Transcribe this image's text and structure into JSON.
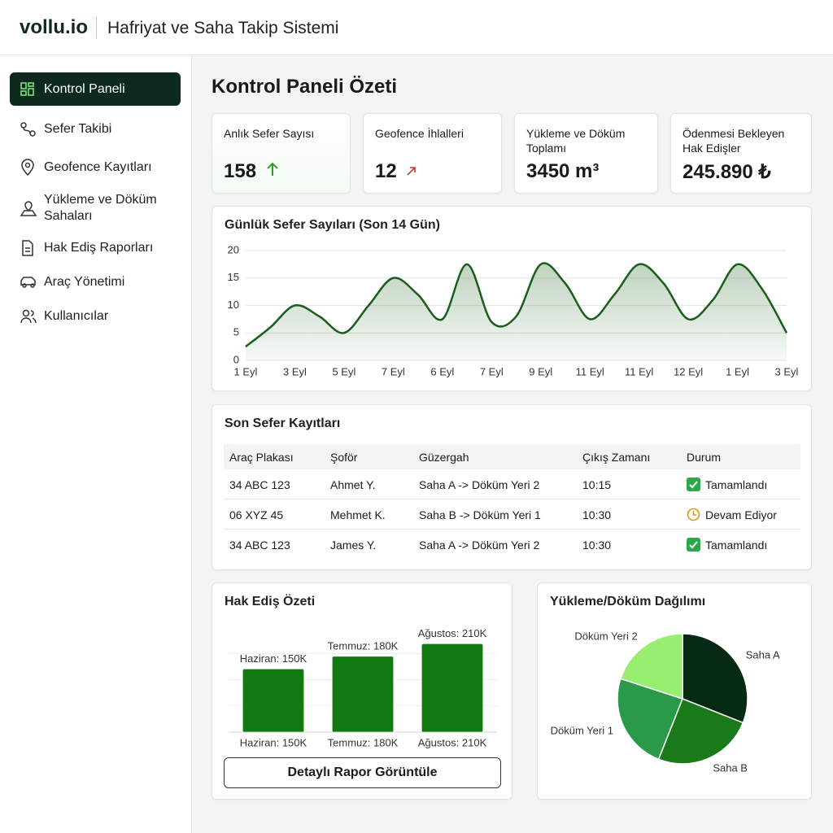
{
  "header": {
    "brand": "vollu.io",
    "title": "Hafriyat ve Saha Takip Sistemi"
  },
  "sidebar": {
    "items": [
      "Kontrol Paneli",
      "Sefer Takibi",
      "Geofence Kayıtları",
      "Yükleme ve Döküm Sahaları",
      "Hak Ediş Raporları",
      "Araç Yönetimi",
      "Kullanıcılar"
    ]
  },
  "page_title": "Kontrol Paneli Özeti",
  "kpis": [
    {
      "label": "Anlık Sefer Sayısı",
      "value": "158"
    },
    {
      "label": "Geofence İhlalleri",
      "value": "12"
    },
    {
      "label": "Yükleme ve Döküm Toplamı",
      "value": "3450 m³"
    },
    {
      "label": "Ödenmesi Bekleyen Hak Edişler",
      "value": "245.890 ₺"
    }
  ],
  "chart_data": [
    {
      "type": "line",
      "title": "Günlük Sefer Sayıları (Son 14 Gün)",
      "categories": [
        "1 Eyl",
        null,
        "3 Eyl",
        null,
        "5 Eyl",
        null,
        "7 Eyl",
        null,
        "6 Eyl",
        null,
        "7 Eyl",
        null,
        "9 Eyl",
        null,
        "11 Eyl",
        null,
        "11 Eyl",
        null,
        "12 Eyl",
        null,
        "1 Eyl",
        null,
        "3 Eyl"
      ],
      "values": [
        2.5,
        6,
        10,
        8,
        5,
        10,
        15,
        12,
        7.5,
        17.5,
        7,
        8,
        17.5,
        14,
        7.5,
        12,
        17.5,
        14,
        7.5,
        11,
        17.5,
        13,
        5
      ],
      "color": "#1b5e1b",
      "ylim": [
        0,
        20
      ],
      "yticks": [
        0,
        5,
        10,
        15,
        20
      ],
      "grid": true
    },
    {
      "type": "bar",
      "title": "Hak Ediş Özeti",
      "values": [
        150000,
        180000,
        210000
      ],
      "value_labels": [
        "Haziran: 150K",
        "Temmuz: 180K",
        "Ağustos: 210K"
      ],
      "color": "#107a10",
      "ylim": [
        0,
        250000
      ],
      "grid": true
    },
    {
      "type": "pie",
      "title": "Yükleme/Döküm Dağılımı",
      "categories": [
        "Saha A",
        "Saha B",
        "Döküm Yeri 1",
        "Döküm Yeri 2"
      ],
      "values": [
        31,
        25,
        24,
        20
      ],
      "colors": [
        "#062a14",
        "#1a7a1a",
        "#2a9a4a",
        "#98ee70"
      ]
    }
  ],
  "table": {
    "title": "Son Sefer Kayıtları",
    "columns": [
      "Araç Plakası",
      "Şoför",
      "Güzergah",
      "Çıkış Zamanı",
      "Durum"
    ],
    "rows": [
      [
        "34 ABC 123",
        "Ahmet Y.",
        "Saha A -> Döküm Yeri 2",
        "10:15",
        "Tamamlandı"
      ],
      [
        "06 XYZ 45",
        "Mehmet K.",
        "Saha B -> Döküm Yeri 1",
        "10:30",
        "Devam Ediyor"
      ],
      [
        "34 ABC 123",
        "James Y.",
        "Saha A -> Döküm Yeri 2",
        "10:30",
        "Tamamlandı"
      ]
    ]
  },
  "button": "Detaylı Rapor Görüntüle"
}
